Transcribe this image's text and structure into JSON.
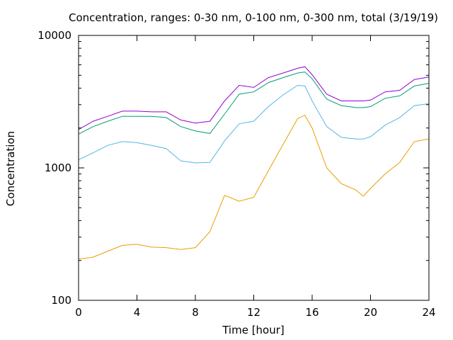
{
  "chart_data": {
    "type": "line",
    "title": "Concentration, ranges: 0-30 nm, 0-100 nm, 0-300 nm, total (3/19/19)",
    "xlabel": "Time [hour]",
    "ylabel": "Concentration",
    "xlim": [
      0,
      24
    ],
    "ylim": [
      100,
      10000
    ],
    "yscale": "log",
    "grid": false,
    "legend": "none",
    "x_ticks": [
      "0",
      "4",
      "8",
      "12",
      "16",
      "20",
      "24"
    ],
    "y_ticks": [
      "100",
      "1000",
      "10000"
    ],
    "x": [
      0,
      1,
      2,
      3,
      4,
      5,
      6,
      7,
      8,
      9,
      10,
      11,
      12,
      13,
      14,
      15,
      15.5,
      16,
      17,
      18,
      19,
      19.5,
      20,
      21,
      22,
      23,
      24
    ],
    "series": [
      {
        "color": "#e69f00",
        "values": [
          205,
          212,
          235,
          260,
          265,
          252,
          250,
          242,
          250,
          330,
          620,
          560,
          600,
          950,
          1500,
          2350,
          2500,
          2000,
          1000,
          760,
          680,
          610,
          700,
          900,
          1100,
          1580,
          1650
        ]
      },
      {
        "color": "#56b4e9",
        "values": [
          1150,
          1300,
          1480,
          1580,
          1550,
          1480,
          1400,
          1130,
          1090,
          1100,
          1600,
          2150,
          2250,
          2900,
          3550,
          4200,
          4150,
          3200,
          2050,
          1700,
          1650,
          1650,
          1720,
          2100,
          2400,
          2950,
          3050
        ]
      },
      {
        "color": "#009e73",
        "values": [
          1800,
          2050,
          2250,
          2450,
          2450,
          2450,
          2400,
          2050,
          1900,
          1820,
          2550,
          3600,
          3750,
          4400,
          4800,
          5200,
          5300,
          4700,
          3300,
          2950,
          2850,
          2850,
          2900,
          3350,
          3500,
          4150,
          4350
        ]
      },
      {
        "color": "#9400d3",
        "values": [
          1950,
          2250,
          2450,
          2680,
          2680,
          2650,
          2650,
          2300,
          2180,
          2250,
          3200,
          4200,
          4050,
          4800,
          5200,
          5650,
          5800,
          5050,
          3600,
          3200,
          3200,
          3200,
          3250,
          3750,
          3850,
          4650,
          4850
        ]
      }
    ]
  }
}
